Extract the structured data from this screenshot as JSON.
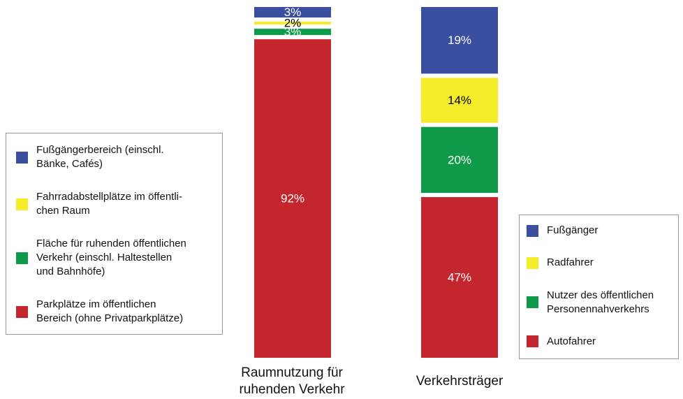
{
  "chart_data": [
    {
      "type": "stacked-bar",
      "categories": [
        "Raumnutzung für\nruhenden Verkehr"
      ],
      "legend": "left",
      "series": [
        {
          "name": "Fußgängerbereich (einschl.\nBänke, Cafés)",
          "color": "#3a4fa0",
          "values": [
            3
          ],
          "value_labels": [
            "3%"
          ]
        },
        {
          "name": "Fahrradabstellplätze im öffentli-\nchen Raum",
          "color": "#f5ec2a",
          "values": [
            2
          ],
          "value_labels": [
            "2%"
          ]
        },
        {
          "name": "Fläche für ruhenden öffentlichen\nVerkehr (einschl. Haltestellen\nund Bahnhöfe)",
          "color": "#0e9a48",
          "values": [
            3
          ],
          "value_labels": [
            "3%"
          ]
        },
        {
          "name": "Parkplätze im öffentlichen\nBereich (ohne Privatparkplätze)",
          "color": "#c4262d",
          "values": [
            92
          ],
          "value_labels": [
            "92%"
          ]
        }
      ]
    },
    {
      "type": "stacked-bar",
      "categories": [
        "Verkehrsträger"
      ],
      "legend": "right",
      "series": [
        {
          "name": "Fußgänger",
          "color": "#3a4fa0",
          "values": [
            19
          ],
          "value_labels": [
            "19%"
          ]
        },
        {
          "name": "Radfahrer",
          "color": "#f5ec2a",
          "values": [
            14
          ],
          "value_labels": [
            "14%"
          ]
        },
        {
          "name": "Nutzer des öffentlichen\nPersonennahverkehrs",
          "color": "#0e9a48",
          "values": [
            20
          ],
          "value_labels": [
            "20%"
          ]
        },
        {
          "name": "Autofahrer",
          "color": "#c4262d",
          "values": [
            47
          ],
          "value_labels": [
            "47%"
          ]
        }
      ]
    }
  ]
}
